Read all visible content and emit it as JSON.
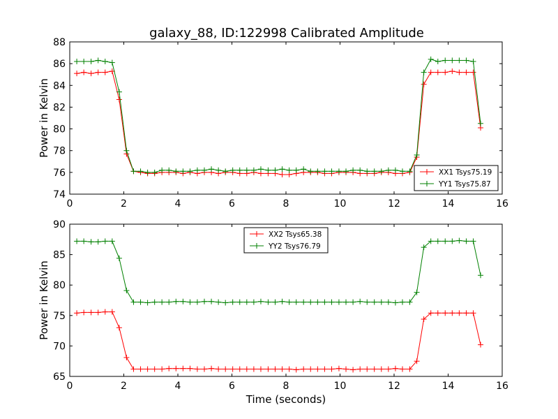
{
  "title": "galaxy_88, ID:122998 Calibrated Amplitude",
  "chart_data": [
    {
      "type": "line",
      "ylabel": "Power in Kelvin",
      "xlabel": "",
      "xlim": [
        0,
        16
      ],
      "ylim": [
        74,
        88
      ],
      "xticks": [
        "0",
        "2",
        "4",
        "6",
        "8",
        "10",
        "12",
        "14",
        "16"
      ],
      "yticks": [
        "74",
        "76",
        "78",
        "80",
        "82",
        "84",
        "86",
        "88"
      ],
      "legend_position": "lower-right",
      "grid": false,
      "x": [
        0.26,
        0.52,
        0.79,
        1.05,
        1.31,
        1.57,
        1.83,
        2.1,
        2.36,
        2.62,
        2.88,
        3.14,
        3.41,
        3.67,
        3.93,
        4.19,
        4.45,
        4.72,
        4.98,
        5.24,
        5.5,
        5.76,
        6.03,
        6.29,
        6.55,
        6.81,
        7.07,
        7.34,
        7.6,
        7.86,
        8.12,
        8.38,
        8.65,
        8.91,
        9.17,
        9.43,
        9.69,
        9.96,
        10.22,
        10.48,
        10.74,
        11.0,
        11.27,
        11.53,
        11.79,
        12.05,
        12.31,
        12.58,
        12.84,
        13.1,
        13.36,
        13.62,
        13.89,
        14.15,
        14.41,
        14.67,
        14.93,
        15.2
      ],
      "series": [
        {
          "name": "XX1 Tsys75.19",
          "color": "#ff0000",
          "values": [
            85.1,
            85.2,
            85.1,
            85.2,
            85.2,
            85.3,
            82.7,
            77.7,
            76.1,
            76.0,
            75.9,
            75.9,
            76.0,
            76.0,
            76.0,
            75.9,
            76.0,
            75.9,
            76.0,
            76.0,
            75.9,
            76.0,
            76.0,
            75.9,
            75.9,
            76.0,
            75.9,
            75.9,
            75.9,
            75.8,
            75.8,
            75.9,
            76.0,
            76.0,
            76.0,
            75.9,
            75.9,
            76.0,
            76.0,
            76.0,
            75.9,
            75.9,
            75.9,
            76.0,
            76.0,
            75.9,
            75.9,
            76.0,
            77.4,
            84.1,
            85.2,
            85.2,
            85.2,
            85.3,
            85.2,
            85.2,
            85.2,
            80.1
          ]
        },
        {
          "name": "YY1 Tsys75.87",
          "color": "#008000",
          "values": [
            86.2,
            86.2,
            86.2,
            86.3,
            86.2,
            86.1,
            83.4,
            78.0,
            76.1,
            76.1,
            76.0,
            76.0,
            76.2,
            76.2,
            76.1,
            76.1,
            76.1,
            76.2,
            76.2,
            76.3,
            76.2,
            76.1,
            76.2,
            76.2,
            76.2,
            76.2,
            76.3,
            76.2,
            76.2,
            76.3,
            76.2,
            76.2,
            76.3,
            76.1,
            76.1,
            76.1,
            76.1,
            76.1,
            76.1,
            76.2,
            76.2,
            76.1,
            76.1,
            76.1,
            76.2,
            76.2,
            76.1,
            76.1,
            77.6,
            85.2,
            86.4,
            86.2,
            86.3,
            86.3,
            86.3,
            86.3,
            86.2,
            80.5
          ]
        }
      ]
    },
    {
      "type": "line",
      "ylabel": "Power in Kelvin",
      "xlabel": "Time (seconds)",
      "xlim": [
        0,
        16
      ],
      "ylim": [
        65,
        90
      ],
      "xticks": [
        "0",
        "2",
        "4",
        "6",
        "8",
        "10",
        "12",
        "14",
        "16"
      ],
      "yticks": [
        "65",
        "70",
        "75",
        "80",
        "85",
        "90"
      ],
      "legend_position": "upper-center",
      "grid": false,
      "x": [
        0.26,
        0.52,
        0.79,
        1.05,
        1.31,
        1.57,
        1.83,
        2.1,
        2.36,
        2.62,
        2.88,
        3.14,
        3.41,
        3.67,
        3.93,
        4.19,
        4.45,
        4.72,
        4.98,
        5.24,
        5.5,
        5.76,
        6.03,
        6.29,
        6.55,
        6.81,
        7.07,
        7.34,
        7.6,
        7.86,
        8.12,
        8.38,
        8.65,
        8.91,
        9.17,
        9.43,
        9.69,
        9.96,
        10.22,
        10.48,
        10.74,
        11.0,
        11.27,
        11.53,
        11.79,
        12.05,
        12.31,
        12.58,
        12.84,
        13.1,
        13.36,
        13.62,
        13.89,
        14.15,
        14.41,
        14.67,
        14.93,
        15.2
      ],
      "series": [
        {
          "name": "XX2 Tsys65.38",
          "color": "#ff0000",
          "values": [
            75.4,
            75.5,
            75.5,
            75.5,
            75.6,
            75.6,
            73.0,
            68.1,
            66.2,
            66.2,
            66.2,
            66.2,
            66.2,
            66.3,
            66.3,
            66.3,
            66.3,
            66.2,
            66.2,
            66.3,
            66.2,
            66.2,
            66.2,
            66.2,
            66.2,
            66.2,
            66.2,
            66.2,
            66.2,
            66.2,
            66.2,
            66.1,
            66.2,
            66.2,
            66.2,
            66.2,
            66.2,
            66.3,
            66.2,
            66.1,
            66.2,
            66.2,
            66.2,
            66.2,
            66.2,
            66.3,
            66.2,
            66.2,
            67.5,
            74.4,
            75.4,
            75.4,
            75.4,
            75.4,
            75.4,
            75.4,
            75.4,
            70.2
          ]
        },
        {
          "name": "YY2 Tsys76.79",
          "color": "#008000",
          "values": [
            87.2,
            87.2,
            87.1,
            87.1,
            87.2,
            87.2,
            84.4,
            79.1,
            77.2,
            77.2,
            77.1,
            77.2,
            77.2,
            77.2,
            77.3,
            77.3,
            77.2,
            77.2,
            77.3,
            77.3,
            77.2,
            77.1,
            77.2,
            77.2,
            77.2,
            77.2,
            77.3,
            77.2,
            77.2,
            77.3,
            77.2,
            77.2,
            77.2,
            77.2,
            77.2,
            77.2,
            77.2,
            77.2,
            77.2,
            77.2,
            77.3,
            77.2,
            77.2,
            77.2,
            77.2,
            77.1,
            77.2,
            77.2,
            78.8,
            86.2,
            87.2,
            87.2,
            87.2,
            87.2,
            87.3,
            87.2,
            87.2,
            81.6
          ]
        }
      ]
    }
  ]
}
